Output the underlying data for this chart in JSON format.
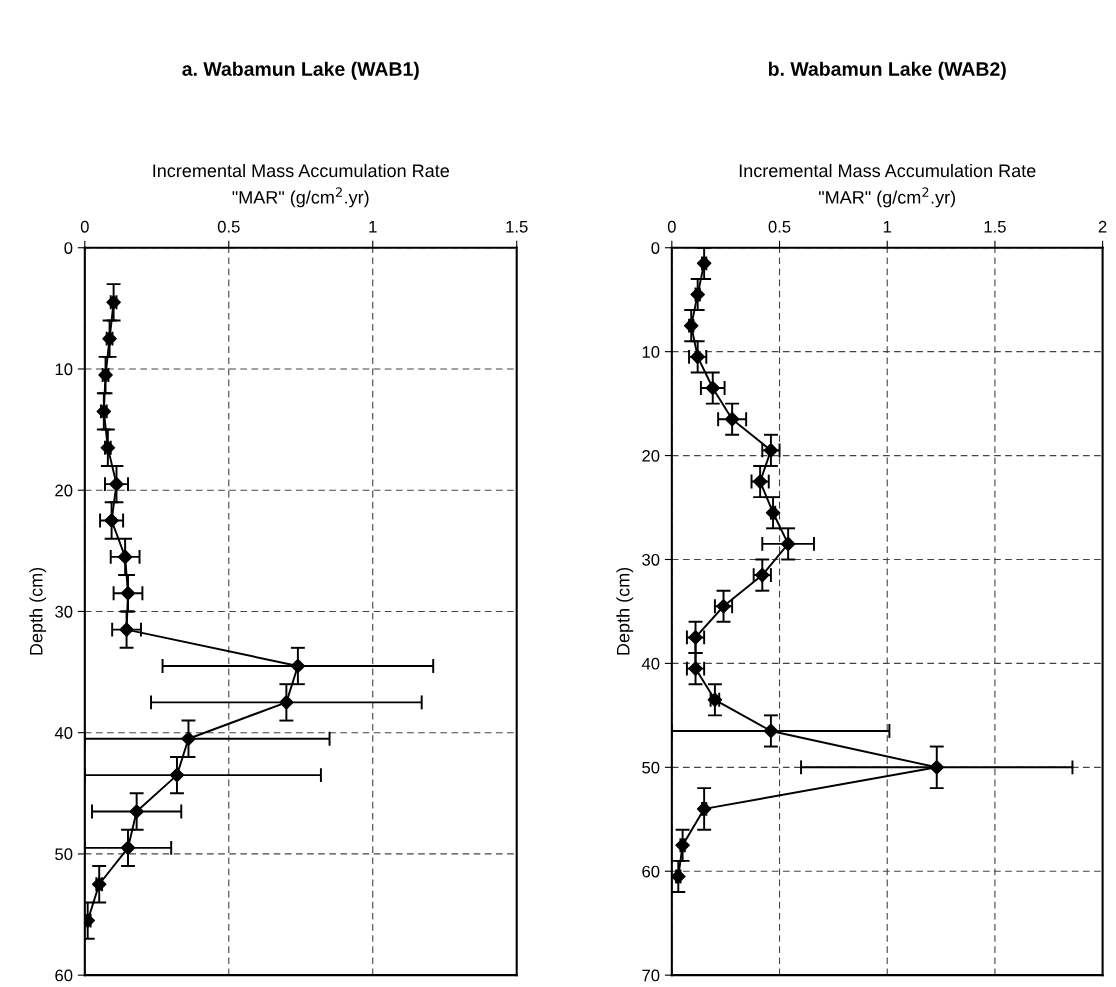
{
  "chart_data": [
    {
      "type": "line",
      "title": "a. Wabamun Lake (WAB1)",
      "xlabel": "Incremental Mass Accumulation Rate\n\"MAR\" (g/cm$^{2}$.yr)",
      "ylabel": "Depth (cm)",
      "xlim": [
        0,
        1.5
      ],
      "xticks": [
        0,
        0.5,
        1,
        1.5
      ],
      "ylim": [
        60,
        0
      ],
      "yticks": [
        0,
        10,
        20,
        30,
        40,
        50,
        60
      ],
      "grid": true,
      "marker": "diamond",
      "line_style": "solid",
      "series": [
        {
          "color": "#000000",
          "x": [
            0.1,
            0.086,
            0.072,
            0.066,
            0.08,
            0.11,
            0.093,
            0.14,
            0.15,
            0.145,
            0.74,
            0.7,
            0.36,
            0.32,
            0.18,
            0.15,
            0.05,
            0.01
          ],
          "values": [
            4.5,
            7.5,
            10.5,
            13.5,
            16.5,
            19.5,
            22.5,
            25.5,
            28.5,
            31.5,
            34.5,
            37.5,
            40.5,
            43.5,
            46.5,
            49.5,
            52.5,
            55.5
          ],
          "errors": [
            1.5,
            1.5,
            1.5,
            1.5,
            1.5,
            1.5,
            1.5,
            1.5,
            1.5,
            1.5,
            1.5,
            1.5,
            1.5,
            1.5,
            1.5,
            1.5,
            1.5,
            1.5
          ],
          "xerrors": [
            0.01,
            0.01,
            0.01,
            0.01,
            0.01,
            0.04,
            0.04,
            0.05,
            0.05,
            0.05,
            0.47,
            0.47,
            [
              0,
              0.85
            ],
            [
              0,
              0.82
            ],
            0.155,
            0.15,
            0.01,
            0.01
          ]
        }
      ]
    },
    {
      "type": "line",
      "title": "b. Wabamun Lake (WAB2)",
      "xlabel": "Incremental Mass Accumulation Rate\n\"MAR\" (g/cm$^{2}$.yr)",
      "ylabel": "Depth (cm)",
      "xlim": [
        0,
        2
      ],
      "xticks": [
        0,
        0.5,
        1,
        1.5,
        2
      ],
      "ylim": [
        70,
        0
      ],
      "yticks": [
        0,
        10,
        20,
        30,
        40,
        50,
        60,
        70
      ],
      "grid": true,
      "marker": "diamond",
      "line_style": "solid",
      "series": [
        {
          "color": "#000000",
          "x": [
            0.15,
            0.12,
            0.09,
            0.12,
            0.19,
            0.28,
            0.46,
            0.41,
            0.47,
            0.54,
            0.42,
            0.24,
            0.11,
            0.11,
            0.2,
            0.46,
            1.23,
            0.15,
            0.05,
            0.03
          ],
          "values": [
            1.5,
            4.5,
            7.5,
            10.5,
            13.5,
            16.5,
            19.5,
            22.5,
            25.5,
            28.5,
            31.5,
            34.5,
            37.5,
            40.5,
            43.5,
            46.5,
            50,
            54,
            57.5,
            60.5
          ],
          "errors": [
            1.5,
            1.5,
            1.5,
            1.5,
            1.5,
            1.5,
            1.5,
            1.5,
            1.5,
            1.5,
            1.5,
            1.5,
            1.5,
            1.5,
            1.5,
            1.5,
            2,
            2,
            1.5,
            1.5
          ],
          "xerrors": [
            0.01,
            0.01,
            0.01,
            0.04,
            0.055,
            0.065,
            0.04,
            0.04,
            0.01,
            0.12,
            0.04,
            0.04,
            0.04,
            0.04,
            0.02,
            [
              0,
              1.01
            ],
            0.63,
            0.01,
            0.01,
            0.01
          ]
        }
      ]
    }
  ]
}
